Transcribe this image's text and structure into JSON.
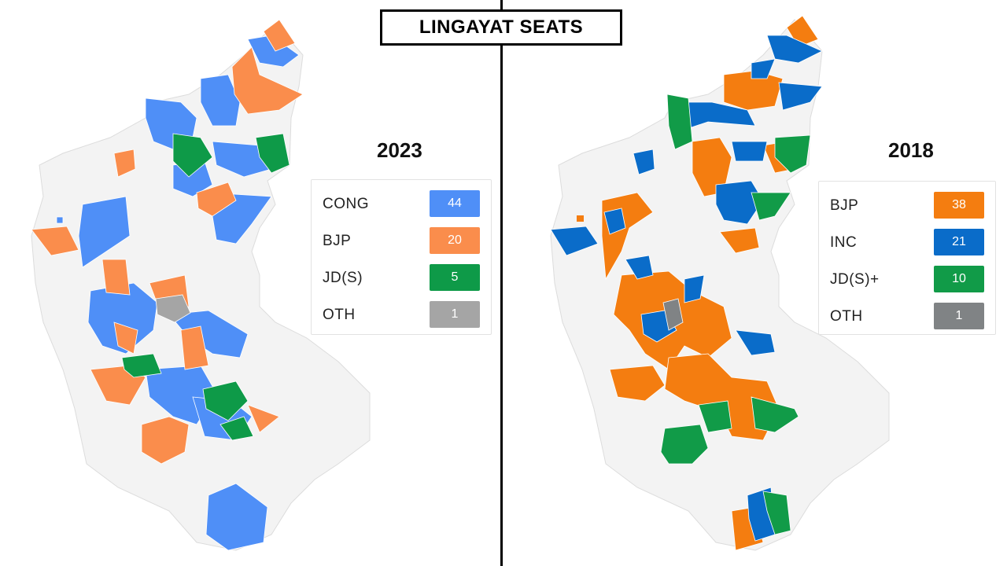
{
  "title": "LINGAYAT SEATS",
  "maps": [
    {
      "year": "2023",
      "legend": [
        {
          "party": "CONG",
          "seats": "44",
          "color": "#4F8FF7"
        },
        {
          "party": "BJP",
          "seats": "20",
          "color": "#FA8D4C"
        },
        {
          "party": "JD(S)",
          "seats": "5",
          "color": "#0E9A48"
        },
        {
          "party": "OTH",
          "seats": "1",
          "color": "#A5A5A5"
        }
      ]
    },
    {
      "year": "2018",
      "legend": [
        {
          "party": "BJP",
          "seats": "38",
          "color": "#F47D10"
        },
        {
          "party": "INC",
          "seats": "21",
          "color": "#0A6CC9"
        },
        {
          "party": "JD(S)+",
          "seats": "10",
          "color": "#119B48"
        },
        {
          "party": "OTH",
          "seats": "1",
          "color": "#808385"
        }
      ]
    }
  ]
}
